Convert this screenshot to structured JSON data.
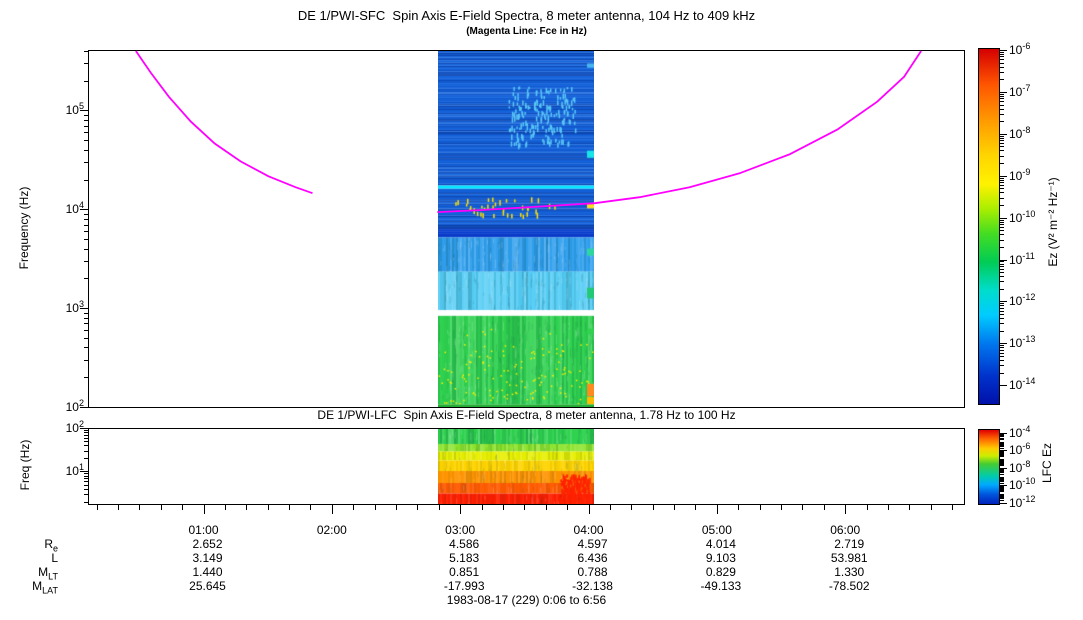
{
  "chart_data": [
    {
      "type": "heatmap",
      "title": "DE 1/PWI-SFC  Spin Axis E-Field Spectra, 8 meter antenna, 104 Hz to 409 kHz",
      "subtitle": "(Magenta Line: Fce in Hz)",
      "ylabel": "Frequency (Hz)",
      "yaxis": {
        "scale": "log",
        "min_hz": 104,
        "max_hz": 409000,
        "log_min": 2,
        "log_max": 5.612,
        "tick_labels": [
          "10^5",
          "10^4",
          "10^3",
          "10^2"
        ],
        "tick_logs": [
          5,
          4,
          3,
          2
        ]
      },
      "colorbar": {
        "label": "Ez (V² m⁻² Hz⁻¹)",
        "tick_labels": [
          "10^-6",
          "10^-7",
          "10^-8",
          "10^-9",
          "10^-10",
          "10^-11",
          "10^-12",
          "10^-13",
          "10^-14"
        ],
        "gradient": [
          "#d40000 0%",
          "#ff5500 10%",
          "#ff9900 20%",
          "#ffd500 30%",
          "#fff200 38%",
          "#aaee00 45%",
          "#44dd22 52%",
          "#00cc55 60%",
          "#00ddcc 68%",
          "#00ccff 75%",
          "#0077ee 83%",
          "#0033cc 92%",
          "#0011aa 100%"
        ]
      },
      "fce_line": {
        "color": "#ff00ff",
        "segments": [
          [
            [
              0.0536,
              0.0
            ],
            [
              0.0707,
              0.0615
            ],
            [
              0.0912,
              0.1285
            ],
            [
              0.1163,
              0.1983
            ],
            [
              0.1437,
              0.2598
            ],
            [
              0.1733,
              0.3101
            ],
            [
              0.2052,
              0.352
            ],
            [
              0.236,
              0.3827
            ],
            [
              0.2554,
              0.3994
            ]
          ],
          [
            [
              0.398,
              0.4525
            ],
            [
              0.447,
              0.4469
            ],
            [
              0.504,
              0.4385
            ],
            [
              0.5781,
              0.4274
            ],
            [
              0.6294,
              0.4106
            ],
            [
              0.6864,
              0.3827
            ],
            [
              0.7434,
              0.3436
            ],
            [
              0.8004,
              0.2905
            ],
            [
              0.8552,
              0.2207
            ],
            [
              0.9008,
              0.1425
            ],
            [
              0.9316,
              0.0726
            ],
            [
              0.951,
              0.0
            ]
          ]
        ]
      },
      "data_extent_min": {
        "start": 169,
        "end": 242
      },
      "spectrogram": {
        "seed": 1234,
        "bands": [
          {
            "y0": 0.0,
            "y1": 0.378,
            "color": "#1463dc",
            "texture": "rows",
            "var": 0.16,
            "stripe": 0.2
          },
          {
            "y0": 0.378,
            "y1": 0.387,
            "color": "#00e6ff",
            "texture": "none"
          },
          {
            "y0": 0.387,
            "y1": 0.5,
            "color": "#1463dc",
            "texture": "rows",
            "var": 0.16,
            "stripe": 0.24
          },
          {
            "y0": 0.5,
            "y1": 0.524,
            "color": "#0b3fd0",
            "texture": "rows",
            "var": 0.1
          },
          {
            "y0": 0.524,
            "y1": 0.62,
            "color": "#2f9fee",
            "texture": "cols",
            "var": 0.2
          },
          {
            "y0": 0.62,
            "y1": 0.728,
            "color": "#55cdf5",
            "texture": "cols",
            "var": 0.2
          },
          {
            "y0": 0.728,
            "y1": 0.744,
            "color": "#ffffff",
            "texture": "none"
          },
          {
            "y0": 0.744,
            "y1": 0.993,
            "color": "#2fd24f",
            "texture": "cols",
            "var": 0.18,
            "speckle": {
              "color": "#ffee00",
              "density": 0.01,
              "bias": "bottom"
            }
          },
          {
            "y0": 0.993,
            "y1": 1.0,
            "color": "#22aa33",
            "texture": "none"
          }
        ],
        "patches": [
          {
            "x0": 0.45,
            "x1": 0.88,
            "y0": 0.1,
            "y1": 0.26,
            "color": "#59c8f7",
            "density": 0.05
          },
          {
            "x0": 0.1,
            "x1": 0.75,
            "y0": 0.41,
            "y1": 0.46,
            "color": "#ffe000",
            "density": 0.02
          }
        ],
        "edge_blocks": [
          {
            "y0": 0.035,
            "h": 0.012,
            "color": "#49b6f0"
          },
          {
            "y0": 0.28,
            "h": 0.02,
            "color": "#19e5e8"
          },
          {
            "y0": 0.43,
            "h": 0.012,
            "color": "#ffdd22"
          },
          {
            "y0": 0.555,
            "h": 0.02,
            "color": "#2fd6a0"
          },
          {
            "y0": 0.665,
            "h": 0.03,
            "color": "#23c977"
          },
          {
            "y0": 0.78,
            "h": 0.015,
            "color": "#30d24f"
          },
          {
            "y0": 0.935,
            "h": 0.035,
            "color": "#ff8a1e"
          },
          {
            "y0": 0.972,
            "h": 0.02,
            "color": "#ffbb00"
          }
        ]
      }
    },
    {
      "type": "heatmap",
      "title": "DE 1/PWI-LFC  Spin Axis E-Field Spectra, 8 meter antenna, 1.78 Hz to 100 Hz",
      "ylabel": "Freq (Hz)",
      "yaxis": {
        "scale": "log",
        "min_hz": 1.78,
        "max_hz": 100,
        "log_min": 0.25,
        "log_max": 2,
        "tick_labels": [
          "10^2",
          "10^1"
        ],
        "tick_logs": [
          2,
          1
        ]
      },
      "colorbar": {
        "label": "LFC Ez",
        "tick_labels": [
          "10^-4",
          "10^-6",
          "10^-8",
          "10^-10",
          "10^-12"
        ],
        "gradient": [
          "#e00000 0%",
          "#ff6600 12%",
          "#ffcc00 25%",
          "#ccee00 35%",
          "#44cc33 46%",
          "#00ccaa 62%",
          "#00aaff 74%",
          "#0055dd 87%",
          "#0022bb 100%"
        ]
      },
      "data_extent_min": {
        "start": 169,
        "end": 242
      },
      "spectrogram": {
        "seed": 77,
        "bands": [
          {
            "y0": 0.0,
            "y1": 0.2,
            "color": "#2fd24f",
            "texture": "cols",
            "var": 0.22
          },
          {
            "y0": 0.2,
            "y1": 0.3,
            "color": "#8ce32a",
            "texture": "cols",
            "var": 0.18
          },
          {
            "y0": 0.3,
            "y1": 0.42,
            "color": "#e8ef00",
            "texture": "cols",
            "var": 0.15
          },
          {
            "y0": 0.42,
            "y1": 0.56,
            "color": "#ffd400",
            "texture": "cols",
            "var": 0.12
          },
          {
            "y0": 0.56,
            "y1": 0.72,
            "color": "#ff9400",
            "texture": "cols",
            "var": 0.12
          },
          {
            "y0": 0.72,
            "y1": 0.86,
            "color": "#ff5a00",
            "texture": "cols",
            "var": 0.1
          },
          {
            "y0": 0.86,
            "y1": 1.0,
            "color": "#ff1e00",
            "texture": "cols",
            "var": 0.1
          }
        ],
        "patches": [
          {
            "x0": 0.78,
            "x1": 0.97,
            "y0": 0.6,
            "y1": 1.0,
            "color": "#ff2200",
            "density": 0.25
          }
        ],
        "edge_blocks": []
      }
    }
  ],
  "time_axis": {
    "start_min": 6,
    "end_min": 416,
    "minor_step_min": 10,
    "hours": [
      {
        "t": 60,
        "label": "01:00"
      },
      {
        "t": 120,
        "label": "02:00"
      },
      {
        "t": 180,
        "label": "03:00"
      },
      {
        "t": 240,
        "label": "04:00"
      },
      {
        "t": 300,
        "label": "05:00"
      },
      {
        "t": 360,
        "label": "06:00"
      }
    ]
  },
  "ephemeris": {
    "type": "table",
    "row_labels": [
      {
        "main": "R",
        "sub": "e"
      },
      {
        "main": "L",
        "sub": ""
      },
      {
        "main": "M",
        "sub": "LT"
      },
      {
        "main": "M",
        "sub": "LAT"
      }
    ],
    "columns": [
      {
        "t": 60,
        "values": [
          "2.652",
          "3.149",
          "1.440",
          "25.645"
        ]
      },
      {
        "t": 180,
        "values": [
          "4.586",
          "5.183",
          "0.851",
          "-17.993"
        ]
      },
      {
        "t": 240,
        "values": [
          "4.597",
          "6.436",
          "0.788",
          "-32.138"
        ]
      },
      {
        "t": 300,
        "values": [
          "4.014",
          "9.103",
          "0.829",
          "-49.133"
        ]
      },
      {
        "t": 360,
        "values": [
          "2.719",
          "53.981",
          "1.330",
          "-78.502"
        ]
      }
    ]
  },
  "footer": "1983-08-17 (229) 0:06 to 6:56"
}
